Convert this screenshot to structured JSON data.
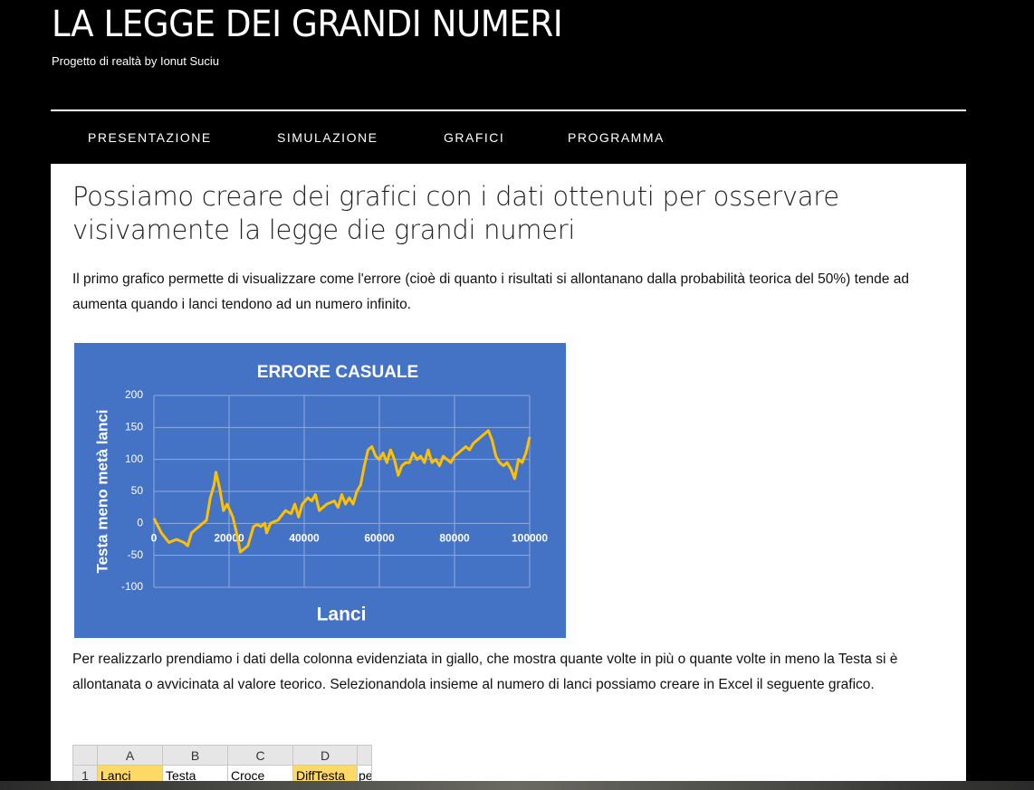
{
  "header": {
    "title": "LA LEGGE DEI GRANDI NUMERI",
    "subtitle": "Progetto di realtà by Ionut Suciu"
  },
  "nav": [
    "PRESENTAZIONE",
    "SIMULAZIONE",
    "GRAFICI",
    "PROGRAMMA"
  ],
  "article": {
    "heading": "Possiamo creare dei grafici con i dati ottenuti per osservare visivamente la legge die grandi numeri",
    "paragraphs": [
      "Il primo grafico permette di visualizzare come l'errore (cioè di quanto i risultati si allontanano dalla probabilità teorica del 50%) tende ad aumenta quando i lanci tendono ad un numero infinito.",
      "Per realizzarlo prendiamo i dati della colonna evidenziata in giallo, che mostra quante volte in più o quante volte in meno la Testa si è allontanata o avvicinata al valore teorico. Selezionandola insieme al numero di lanci possiamo creare in Excel il seguente grafico."
    ]
  },
  "chart_data": {
    "type": "line",
    "title": "ERRORE CASUALE",
    "xlabel": "Lanci",
    "ylabel": "Testa meno metà lanci",
    "x": [
      0,
      2000,
      4000,
      6000,
      8000,
      9000,
      10000,
      12000,
      14000,
      15000,
      16000,
      16500,
      17500,
      18500,
      19500,
      21000,
      22000,
      23000,
      24000,
      25000,
      26500,
      27500,
      28500,
      29500,
      30000,
      31000,
      33000,
      35000,
      36500,
      37500,
      38500,
      39500,
      41000,
      42000,
      43000,
      44000,
      46000,
      48000,
      49000,
      50000,
      51000,
      52000,
      53000,
      54000,
      55000,
      56000,
      57000,
      58000,
      59000,
      60000,
      61000,
      62000,
      63000,
      64000,
      65000,
      66000,
      67000,
      68000,
      69000,
      70000,
      71000,
      72000,
      73000,
      74000,
      75000,
      76000,
      77000,
      78000,
      79000,
      80000,
      81000,
      82000,
      83000,
      84000,
      85000,
      86000,
      87000,
      88000,
      89000,
      90000,
      91000,
      92000,
      93000,
      94000,
      95000,
      96000,
      97000,
      98000,
      99000,
      100000
    ],
    "values": [
      8,
      -15,
      -30,
      -25,
      -30,
      -35,
      -15,
      -5,
      5,
      40,
      60,
      80,
      55,
      20,
      30,
      10,
      -15,
      -45,
      -40,
      -35,
      -5,
      -2,
      -5,
      0,
      -15,
      0,
      5,
      20,
      15,
      30,
      10,
      30,
      40,
      35,
      45,
      20,
      30,
      35,
      25,
      45,
      30,
      40,
      30,
      50,
      60,
      90,
      115,
      120,
      105,
      100,
      110,
      95,
      115,
      100,
      75,
      90,
      95,
      95,
      110,
      100,
      105,
      95,
      115,
      95,
      100,
      90,
      105,
      100,
      95,
      105,
      110,
      115,
      120,
      115,
      125,
      130,
      135,
      140,
      145,
      130,
      105,
      95,
      90,
      95,
      85,
      70,
      100,
      95,
      110,
      135
    ],
    "color": "#ffc000",
    "background": "#4472c4",
    "grid": true,
    "xlim": [
      0,
      100000
    ],
    "xticks": [
      0,
      20000,
      40000,
      60000,
      80000,
      100000
    ],
    "ylim": [
      -100,
      200
    ],
    "yticks": [
      -100,
      -50,
      0,
      50,
      100,
      150,
      200
    ]
  },
  "spreadsheet": {
    "columns": [
      "A",
      "B",
      "C",
      "D"
    ],
    "rows": [
      [
        "1",
        "Lanci",
        "Testa",
        "Croce",
        "DiffTesta",
        "pe"
      ]
    ]
  }
}
